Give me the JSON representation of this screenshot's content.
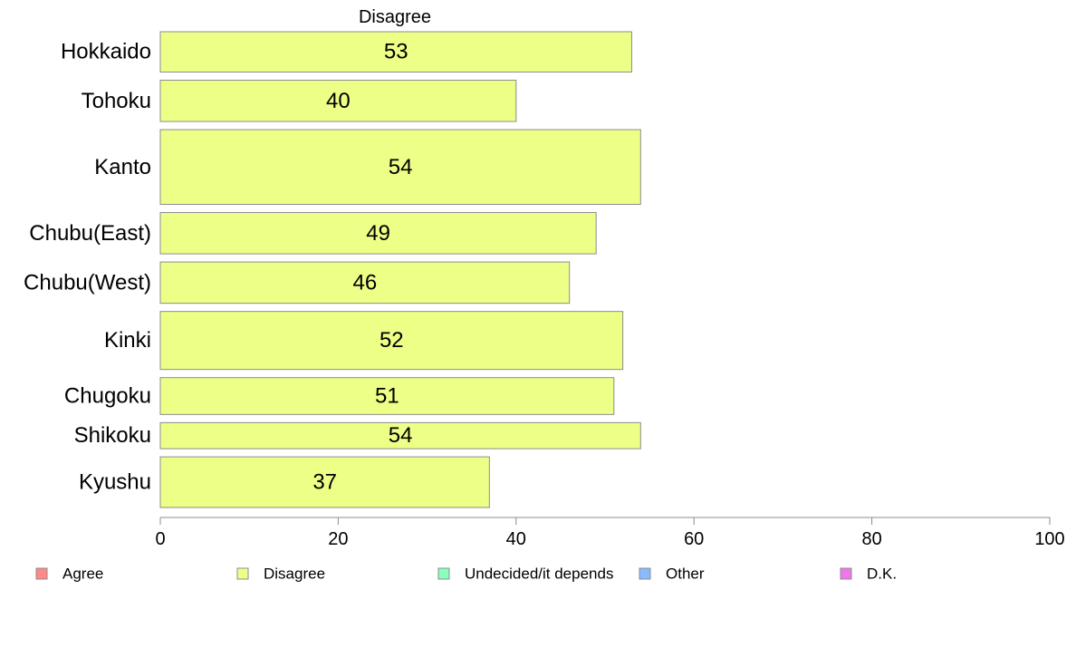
{
  "chart_data": {
    "type": "bar",
    "orientation": "horizontal",
    "title": "Disagree",
    "categories": [
      "Hokkaido",
      "Tohoku",
      "Kanto",
      "Chubu(East)",
      "Chubu(West)",
      "Kinki",
      "Chugoku",
      "Shikoku",
      "Kyushu"
    ],
    "bar_weights": [
      0.82,
      0.84,
      1.52,
      0.84,
      0.84,
      1.18,
      0.75,
      0.53,
      1.03
    ],
    "series": [
      {
        "name": "Disagree",
        "values": [
          53,
          40,
          54,
          49,
          46,
          52,
          51,
          54,
          37
        ],
        "color": "#eeff88"
      }
    ],
    "data_labels": [
      "53",
      "40",
      "54",
      "49",
      "46",
      "52",
      "51",
      "54",
      "37"
    ],
    "xlim": [
      0,
      100
    ],
    "xticks": [
      0,
      20,
      40,
      60,
      80,
      100
    ],
    "xtick_labels": [
      "0",
      "20",
      "40",
      "60",
      "80",
      "100"
    ],
    "xlabel": "",
    "ylabel": "",
    "grid": false,
    "legend": {
      "placement": "bottom",
      "items": [
        {
          "label": "Agree",
          "color": "#ff8888"
        },
        {
          "label": "Disagree",
          "color": "#eeff88"
        },
        {
          "label": "Undecided/it depends",
          "color": "#88ffbb"
        },
        {
          "label": "Other",
          "color": "#88bbff"
        },
        {
          "label": "D.K.",
          "color": "#ee77ee"
        }
      ]
    }
  }
}
